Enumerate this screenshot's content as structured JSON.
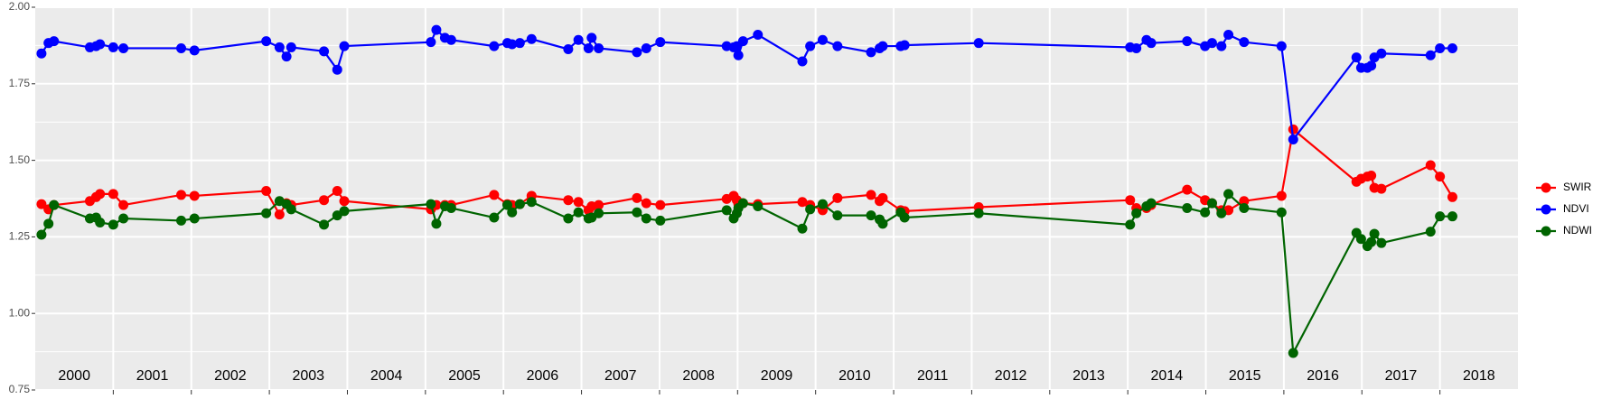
{
  "chart_data": {
    "type": "line",
    "x": [
      2000.08,
      2000.17,
      2000.24,
      2000.7,
      2000.78,
      2000.83,
      2001.0,
      2001.13,
      2001.87,
      2002.04,
      2002.96,
      2003.13,
      2003.22,
      2003.28,
      2003.7,
      2003.87,
      2003.96,
      2005.07,
      2005.14,
      2005.25,
      2005.33,
      2005.88,
      2006.05,
      2006.11,
      2006.21,
      2006.36,
      2006.83,
      2006.96,
      2007.09,
      2007.13,
      2007.22,
      2007.71,
      2007.83,
      2008.01,
      2008.86,
      2008.95,
      2008.99,
      2009.01,
      2009.07,
      2009.26,
      2009.83,
      2009.93,
      2010.09,
      2010.28,
      2010.71,
      2010.82,
      2010.86,
      2011.09,
      2011.14,
      2012.09,
      2014.03,
      2014.11,
      2014.24,
      2014.3,
      2014.76,
      2014.99,
      2015.08,
      2015.2,
      2015.29,
      2015.49,
      2015.97,
      2016.12,
      2016.93,
      2016.99,
      2017.07,
      2017.12,
      2017.16,
      2017.25,
      2017.88,
      2018.0,
      2018.16
    ],
    "series": [
      {
        "name": "SWIR",
        "color": "#ff0000",
        "values": [
          1.357,
          1.34,
          1.354,
          1.367,
          1.38,
          1.39,
          1.39,
          1.354,
          1.387,
          1.384,
          1.4,
          1.323,
          1.36,
          1.354,
          1.37,
          1.4,
          1.367,
          1.34,
          1.354,
          1.354,
          1.354,
          1.387,
          1.357,
          1.354,
          1.357,
          1.384,
          1.37,
          1.364,
          1.337,
          1.35,
          1.354,
          1.377,
          1.36,
          1.354,
          1.374,
          1.384,
          1.37,
          1.357,
          1.36,
          1.357,
          1.364,
          1.354,
          1.337,
          1.377,
          1.387,
          1.367,
          1.377,
          1.337,
          1.334,
          1.347,
          1.37,
          1.344,
          1.344,
          1.354,
          1.404,
          1.37,
          1.36,
          1.337,
          1.337,
          1.367,
          1.384,
          1.601,
          1.43,
          1.44,
          1.447,
          1.45,
          1.41,
          1.407,
          1.484,
          1.447,
          1.38
        ]
      },
      {
        "name": "NDVI",
        "color": "#0000ff",
        "values": [
          1.849,
          1.883,
          1.889,
          1.869,
          1.873,
          1.879,
          1.869,
          1.866,
          1.866,
          1.859,
          1.889,
          1.869,
          1.839,
          1.869,
          1.856,
          1.796,
          1.873,
          1.886,
          1.926,
          1.9,
          1.893,
          1.873,
          1.883,
          1.879,
          1.883,
          1.896,
          1.863,
          1.893,
          1.866,
          1.9,
          1.866,
          1.853,
          1.866,
          1.886,
          1.873,
          1.869,
          1.873,
          1.843,
          1.889,
          1.91,
          1.823,
          1.873,
          1.893,
          1.873,
          1.853,
          1.866,
          1.873,
          1.873,
          1.876,
          1.883,
          1.869,
          1.866,
          1.893,
          1.883,
          1.889,
          1.873,
          1.883,
          1.873,
          1.91,
          1.886,
          1.873,
          1.568,
          1.836,
          1.802,
          1.802,
          1.809,
          1.836,
          1.849,
          1.843,
          1.866,
          1.866
        ]
      },
      {
        "name": "NDWI",
        "color": "#006400",
        "values": [
          1.257,
          1.293,
          1.354,
          1.31,
          1.313,
          1.297,
          1.29,
          1.31,
          1.303,
          1.31,
          1.327,
          1.367,
          1.357,
          1.34,
          1.29,
          1.32,
          1.334,
          1.357,
          1.293,
          1.35,
          1.344,
          1.313,
          1.354,
          1.33,
          1.357,
          1.364,
          1.31,
          1.33,
          1.31,
          1.313,
          1.327,
          1.33,
          1.31,
          1.303,
          1.337,
          1.31,
          1.327,
          1.344,
          1.36,
          1.35,
          1.277,
          1.34,
          1.357,
          1.32,
          1.32,
          1.307,
          1.293,
          1.33,
          1.313,
          1.327,
          1.29,
          1.327,
          1.35,
          1.36,
          1.344,
          1.33,
          1.36,
          1.327,
          1.39,
          1.344,
          1.33,
          0.871,
          1.263,
          1.243,
          1.22,
          1.233,
          1.26,
          1.23,
          1.267,
          1.317,
          1.317
        ]
      }
    ],
    "xlim": [
      2000,
      2019
    ],
    "xticks": [
      2001,
      2002,
      2003,
      2004,
      2005,
      2006,
      2007,
      2008,
      2009,
      2010,
      2011,
      2012,
      2013,
      2014,
      2015,
      2016,
      2017,
      2018
    ],
    "ylim": [
      0.75,
      2.0
    ],
    "yticks": [
      {
        "value": 0.75,
        "label": "0.75"
      },
      {
        "value": 1.0,
        "label": "1.00"
      },
      {
        "value": 1.25,
        "label": "1.25"
      },
      {
        "value": 1.5,
        "label": "1.50"
      },
      {
        "value": 1.75,
        "label": "1.75"
      },
      {
        "value": 2.0,
        "label": "2.00"
      }
    ],
    "yminorticks": [
      0.875,
      1.125,
      1.375,
      1.625,
      1.875
    ],
    "grid": true,
    "legend": "right",
    "annotations": [
      {
        "label": "2000",
        "x": 2000.5
      },
      {
        "label": "2001",
        "x": 2001.5
      },
      {
        "label": "2002",
        "x": 2002.5
      },
      {
        "label": "2003",
        "x": 2003.5
      },
      {
        "label": "2004",
        "x": 2004.5
      },
      {
        "label": "2005",
        "x": 2005.5
      },
      {
        "label": "2006",
        "x": 2006.5
      },
      {
        "label": "2007",
        "x": 2007.5
      },
      {
        "label": "2008",
        "x": 2008.5
      },
      {
        "label": "2009",
        "x": 2009.5
      },
      {
        "label": "2010",
        "x": 2010.5
      },
      {
        "label": "2011",
        "x": 2011.5
      },
      {
        "label": "2012",
        "x": 2012.5
      },
      {
        "label": "2013",
        "x": 2013.5
      },
      {
        "label": "2014",
        "x": 2014.5
      },
      {
        "label": "2015",
        "x": 2015.5
      },
      {
        "label": "2016",
        "x": 2016.5
      },
      {
        "label": "2017",
        "x": 2017.5
      },
      {
        "label": "2018",
        "x": 2018.5
      }
    ]
  }
}
